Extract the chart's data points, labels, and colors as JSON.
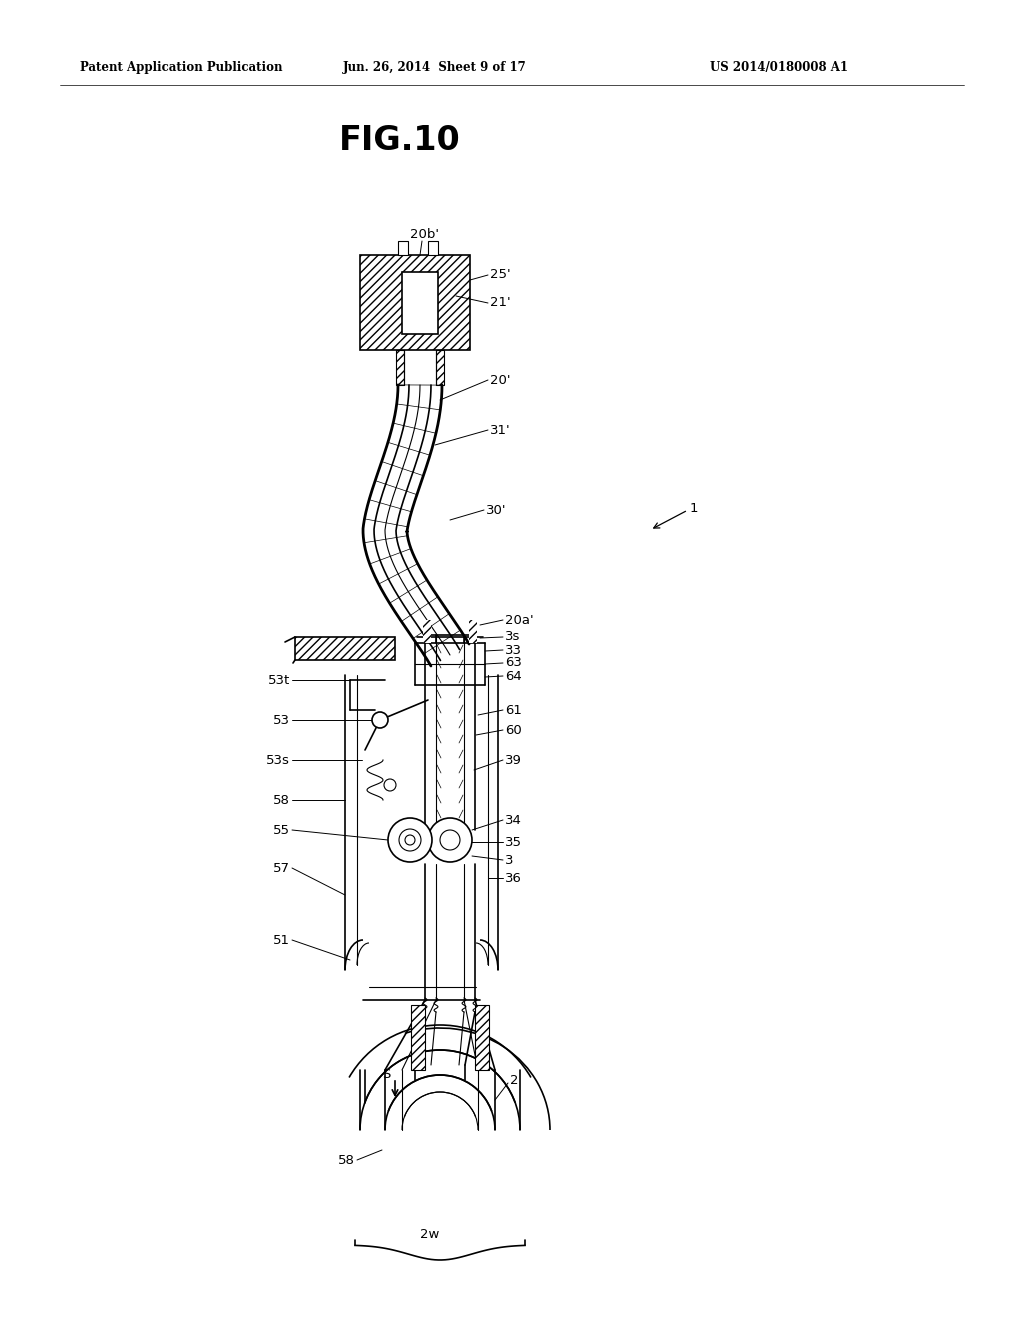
{
  "title": "FIG.10",
  "header_left": "Patent Application Publication",
  "header_center": "Jun. 26, 2014  Sheet 9 of 17",
  "header_right": "US 2014/0180008 A1",
  "bg_color": "#ffffff",
  "lc": "#000000"
}
